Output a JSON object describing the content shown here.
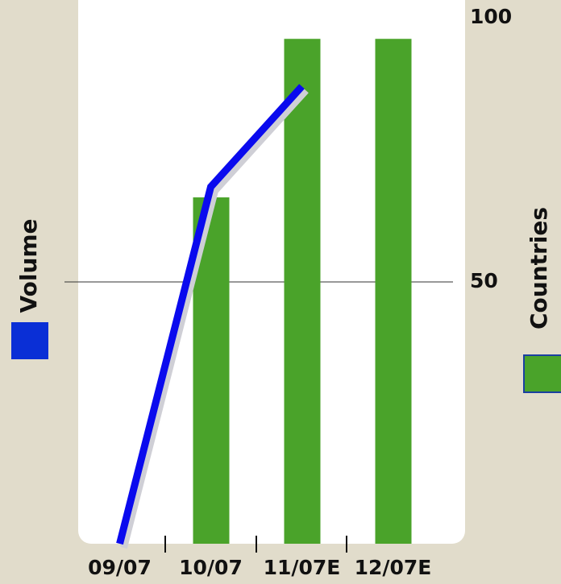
{
  "chart_data": {
    "type": "bar",
    "categories": [
      "09/07",
      "10/07",
      "11/07E",
      "12/07E"
    ],
    "series": [
      {
        "name": "Countries",
        "color": "#4aa32a",
        "type": "bar",
        "values": [
          null,
          66,
          96,
          96
        ]
      },
      {
        "name": "Volume",
        "color": "#0a0aee",
        "type": "line",
        "values": [
          0,
          68,
          87,
          null
        ]
      }
    ],
    "ylim": [
      0,
      100
    ],
    "yticks": [
      50,
      100
    ],
    "grid_at": [
      50
    ]
  }
}
